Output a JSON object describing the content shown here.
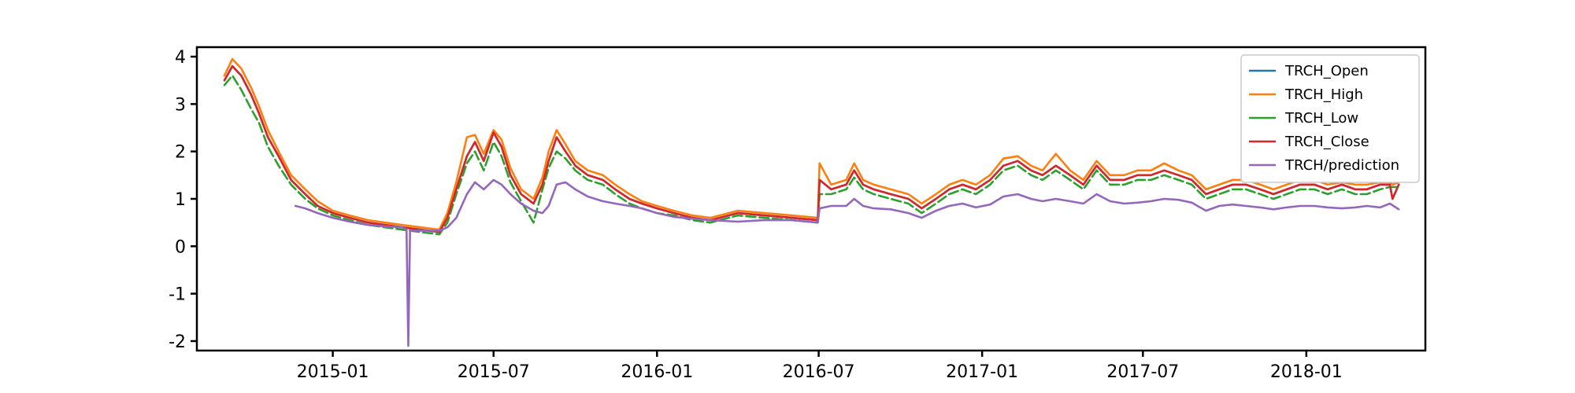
{
  "chart_data": {
    "type": "line",
    "title": "",
    "xlabel": "",
    "ylabel": "",
    "ylim": [
      -2.2,
      4.2
    ],
    "xlim": [
      "2014-08-01",
      "2018-05-15"
    ],
    "grid": false,
    "legend_position": "top-right",
    "y_ticks": [
      {
        "value": 4,
        "label": "4"
      },
      {
        "value": 3,
        "label": "3"
      },
      {
        "value": 2,
        "label": "2"
      },
      {
        "value": 1,
        "label": "1"
      },
      {
        "value": 0,
        "label": "0"
      },
      {
        "value": -1,
        "label": "-1"
      },
      {
        "value": -2,
        "label": "-2"
      }
    ],
    "x_ticks": [
      {
        "date": "2015-01-01",
        "label": "2015-01"
      },
      {
        "date": "2015-07-01",
        "label": "2015-07"
      },
      {
        "date": "2016-01-01",
        "label": "2016-01"
      },
      {
        "date": "2016-07-01",
        "label": "2016-07"
      },
      {
        "date": "2017-01-01",
        "label": "2017-01"
      },
      {
        "date": "2017-07-01",
        "label": "2017-07"
      },
      {
        "date": "2018-01-01",
        "label": "2018-01"
      }
    ],
    "series": [
      {
        "name": "TRCH_Open",
        "color": "#1f77b4",
        "style": "solid",
        "x": [
          "2014-09-01",
          "2014-09-10",
          "2014-09-20",
          "2014-10-01",
          "2014-10-10",
          "2014-10-20",
          "2014-11-01",
          "2014-11-15",
          "2014-12-01",
          "2014-12-15",
          "2015-01-01",
          "2015-01-20",
          "2015-02-10",
          "2015-03-01",
          "2015-03-20",
          "2015-04-10",
          "2015-05-01",
          "2015-05-10",
          "2015-05-20",
          "2015-06-01",
          "2015-06-10",
          "2015-06-20",
          "2015-07-01",
          "2015-07-10",
          "2015-07-20",
          "2015-08-01",
          "2015-08-15",
          "2015-08-25",
          "2015-09-01",
          "2015-09-10",
          "2015-09-20",
          "2015-10-01",
          "2015-10-15",
          "2015-11-01",
          "2015-11-15",
          "2015-12-01",
          "2015-12-15",
          "2016-01-01",
          "2016-01-20",
          "2016-02-10",
          "2016-03-01",
          "2016-04-01",
          "2016-05-01",
          "2016-06-01",
          "2016-06-30",
          "2016-07-02",
          "2016-07-15",
          "2016-08-01",
          "2016-08-10",
          "2016-08-20",
          "2016-09-01",
          "2016-09-20",
          "2016-10-10",
          "2016-10-25",
          "2016-11-10",
          "2016-11-25",
          "2016-12-10",
          "2016-12-25",
          "2017-01-10",
          "2017-01-25",
          "2017-02-10",
          "2017-02-25",
          "2017-03-10",
          "2017-03-25",
          "2017-04-10",
          "2017-04-25",
          "2017-05-10",
          "2017-05-25",
          "2017-06-10",
          "2017-06-25",
          "2017-07-10",
          "2017-07-25",
          "2017-08-10",
          "2017-08-25",
          "2017-09-10",
          "2017-09-25",
          "2017-10-10",
          "2017-10-25",
          "2017-11-10",
          "2017-11-25",
          "2017-12-10",
          "2017-12-25",
          "2018-01-10",
          "2018-01-25",
          "2018-02-10",
          "2018-02-25",
          "2018-03-10",
          "2018-03-25",
          "2018-04-05",
          "2018-04-08",
          "2018-04-15"
        ],
        "y": [
          3.5,
          3.8,
          3.6,
          3.2,
          2.8,
          2.3,
          1.9,
          1.4,
          1.1,
          0.85,
          0.7,
          0.6,
          0.5,
          0.45,
          0.4,
          0.35,
          0.3,
          0.6,
          1.2,
          1.9,
          2.2,
          1.8,
          2.4,
          2.1,
          1.5,
          1.1,
          0.9,
          1.3,
          1.8,
          2.3,
          2.0,
          1.7,
          1.5,
          1.4,
          1.2,
          1.0,
          0.9,
          0.8,
          0.7,
          0.6,
          0.55,
          0.7,
          0.65,
          0.6,
          0.55,
          1.4,
          1.2,
          1.3,
          1.6,
          1.3,
          1.2,
          1.1,
          1.0,
          0.8,
          1.0,
          1.2,
          1.3,
          1.2,
          1.4,
          1.7,
          1.8,
          1.6,
          1.5,
          1.7,
          1.5,
          1.3,
          1.7,
          1.4,
          1.4,
          1.5,
          1.5,
          1.6,
          1.5,
          1.4,
          1.1,
          1.2,
          1.3,
          1.3,
          1.2,
          1.1,
          1.2,
          1.3,
          1.3,
          1.2,
          1.3,
          1.2,
          1.2,
          1.3,
          1.3,
          1.0,
          1.3
        ]
      },
      {
        "name": "TRCH_High",
        "color": "#ff7f0e",
        "style": "solid",
        "x": [
          "2014-09-01",
          "2014-09-10",
          "2014-09-20",
          "2014-10-01",
          "2014-10-10",
          "2014-10-20",
          "2014-11-01",
          "2014-11-15",
          "2014-12-01",
          "2014-12-15",
          "2015-01-01",
          "2015-01-20",
          "2015-02-10",
          "2015-03-01",
          "2015-03-20",
          "2015-04-10",
          "2015-05-01",
          "2015-05-10",
          "2015-05-20",
          "2015-06-01",
          "2015-06-10",
          "2015-06-20",
          "2015-07-01",
          "2015-07-10",
          "2015-07-20",
          "2015-08-01",
          "2015-08-15",
          "2015-08-25",
          "2015-09-01",
          "2015-09-10",
          "2015-09-20",
          "2015-10-01",
          "2015-10-15",
          "2015-11-01",
          "2015-11-15",
          "2015-12-01",
          "2015-12-15",
          "2016-01-01",
          "2016-01-20",
          "2016-02-10",
          "2016-03-01",
          "2016-04-01",
          "2016-05-01",
          "2016-06-01",
          "2016-06-30",
          "2016-07-02",
          "2016-07-15",
          "2016-08-01",
          "2016-08-10",
          "2016-08-20",
          "2016-09-01",
          "2016-09-20",
          "2016-10-10",
          "2016-10-25",
          "2016-11-10",
          "2016-11-25",
          "2016-12-10",
          "2016-12-25",
          "2017-01-10",
          "2017-01-25",
          "2017-02-10",
          "2017-02-25",
          "2017-03-10",
          "2017-03-25",
          "2017-04-10",
          "2017-04-25",
          "2017-05-10",
          "2017-05-25",
          "2017-06-10",
          "2017-06-25",
          "2017-07-10",
          "2017-07-25",
          "2017-08-10",
          "2017-08-25",
          "2017-09-10",
          "2017-09-25",
          "2017-10-10",
          "2017-10-25",
          "2017-11-10",
          "2017-11-25",
          "2017-12-10",
          "2017-12-25",
          "2018-01-10",
          "2018-01-25",
          "2018-02-10",
          "2018-02-25",
          "2018-03-10",
          "2018-03-25",
          "2018-04-05",
          "2018-04-08",
          "2018-04-15"
        ],
        "y": [
          3.6,
          3.95,
          3.75,
          3.35,
          2.95,
          2.45,
          2.0,
          1.5,
          1.2,
          0.95,
          0.75,
          0.65,
          0.55,
          0.5,
          0.45,
          0.4,
          0.35,
          0.7,
          1.35,
          2.3,
          2.35,
          1.95,
          2.45,
          2.25,
          1.65,
          1.2,
          1.0,
          1.45,
          2.0,
          2.45,
          2.15,
          1.8,
          1.6,
          1.5,
          1.3,
          1.1,
          0.95,
          0.85,
          0.75,
          0.65,
          0.6,
          0.75,
          0.7,
          0.65,
          0.6,
          1.75,
          1.3,
          1.4,
          1.75,
          1.4,
          1.3,
          1.2,
          1.1,
          0.9,
          1.1,
          1.3,
          1.4,
          1.3,
          1.5,
          1.85,
          1.9,
          1.7,
          1.6,
          1.95,
          1.6,
          1.4,
          1.8,
          1.5,
          1.5,
          1.6,
          1.6,
          1.75,
          1.6,
          1.5,
          1.2,
          1.3,
          1.4,
          1.4,
          1.3,
          1.2,
          1.3,
          1.4,
          1.4,
          1.3,
          1.35,
          1.3,
          1.3,
          1.35,
          1.35,
          1.3,
          1.35
        ]
      },
      {
        "name": "TRCH_Low",
        "color": "#2ca02c",
        "style": "dashed",
        "x": [
          "2014-09-01",
          "2014-09-10",
          "2014-09-20",
          "2014-10-01",
          "2014-10-10",
          "2014-10-20",
          "2014-11-01",
          "2014-11-15",
          "2014-12-01",
          "2014-12-15",
          "2015-01-01",
          "2015-01-20",
          "2015-02-10",
          "2015-03-01",
          "2015-03-20",
          "2015-04-10",
          "2015-05-01",
          "2015-05-10",
          "2015-05-20",
          "2015-06-01",
          "2015-06-10",
          "2015-06-20",
          "2015-07-01",
          "2015-07-10",
          "2015-07-20",
          "2015-08-01",
          "2015-08-15",
          "2015-08-25",
          "2015-09-01",
          "2015-09-10",
          "2015-09-20",
          "2015-10-01",
          "2015-10-15",
          "2015-11-01",
          "2015-11-15",
          "2015-12-01",
          "2015-12-15",
          "2016-01-01",
          "2016-01-20",
          "2016-02-10",
          "2016-03-01",
          "2016-04-01",
          "2016-05-01",
          "2016-06-01",
          "2016-06-30",
          "2016-07-02",
          "2016-07-15",
          "2016-08-01",
          "2016-08-10",
          "2016-08-20",
          "2016-09-01",
          "2016-09-20",
          "2016-10-10",
          "2016-10-25",
          "2016-11-10",
          "2016-11-25",
          "2016-12-10",
          "2016-12-25",
          "2017-01-10",
          "2017-01-25",
          "2017-02-10",
          "2017-02-25",
          "2017-03-10",
          "2017-03-25",
          "2017-04-10",
          "2017-04-25",
          "2017-05-10",
          "2017-05-25",
          "2017-06-10",
          "2017-06-25",
          "2017-07-10",
          "2017-07-25",
          "2017-08-10",
          "2017-08-25",
          "2017-09-10",
          "2017-09-25",
          "2017-10-10",
          "2017-10-25",
          "2017-11-10",
          "2017-11-25",
          "2017-12-10",
          "2017-12-25",
          "2018-01-10",
          "2018-01-25",
          "2018-02-10",
          "2018-02-25",
          "2018-03-10",
          "2018-03-25",
          "2018-04-05",
          "2018-04-08",
          "2018-04-15"
        ],
        "y": [
          3.4,
          3.6,
          3.3,
          2.9,
          2.6,
          2.1,
          1.7,
          1.3,
          1.0,
          0.8,
          0.65,
          0.55,
          0.45,
          0.4,
          0.35,
          0.3,
          0.25,
          0.5,
          1.1,
          1.75,
          2.0,
          1.6,
          2.2,
          1.9,
          1.35,
          0.95,
          0.5,
          1.2,
          1.65,
          2.0,
          1.85,
          1.6,
          1.4,
          1.3,
          1.1,
          0.9,
          0.8,
          0.7,
          0.65,
          0.55,
          0.5,
          0.65,
          0.6,
          0.55,
          0.5,
          1.1,
          1.1,
          1.2,
          1.45,
          1.2,
          1.1,
          1.0,
          0.9,
          0.7,
          0.9,
          1.1,
          1.2,
          1.1,
          1.3,
          1.6,
          1.7,
          1.5,
          1.4,
          1.6,
          1.4,
          1.2,
          1.6,
          1.3,
          1.3,
          1.4,
          1.4,
          1.5,
          1.4,
          1.3,
          1.0,
          1.1,
          1.2,
          1.2,
          1.1,
          1.0,
          1.1,
          1.2,
          1.2,
          1.1,
          1.2,
          1.1,
          1.1,
          1.2,
          1.25,
          1.25,
          1.25
        ]
      },
      {
        "name": "TRCH_Close",
        "color": "#d62728",
        "style": "solid",
        "x": [
          "2014-09-01",
          "2014-09-10",
          "2014-09-20",
          "2014-10-01",
          "2014-10-10",
          "2014-10-20",
          "2014-11-01",
          "2014-11-15",
          "2014-12-01",
          "2014-12-15",
          "2015-01-01",
          "2015-01-20",
          "2015-02-10",
          "2015-03-01",
          "2015-03-20",
          "2015-04-10",
          "2015-05-01",
          "2015-05-10",
          "2015-05-20",
          "2015-06-01",
          "2015-06-10",
          "2015-06-20",
          "2015-07-01",
          "2015-07-10",
          "2015-07-20",
          "2015-08-01",
          "2015-08-15",
          "2015-08-25",
          "2015-09-01",
          "2015-09-10",
          "2015-09-20",
          "2015-10-01",
          "2015-10-15",
          "2015-11-01",
          "2015-11-15",
          "2015-12-01",
          "2015-12-15",
          "2016-01-01",
          "2016-01-20",
          "2016-02-10",
          "2016-03-01",
          "2016-04-01",
          "2016-05-01",
          "2016-06-01",
          "2016-06-30",
          "2016-07-02",
          "2016-07-15",
          "2016-08-01",
          "2016-08-10",
          "2016-08-20",
          "2016-09-01",
          "2016-09-20",
          "2016-10-10",
          "2016-10-25",
          "2016-11-10",
          "2016-11-25",
          "2016-12-10",
          "2016-12-25",
          "2017-01-10",
          "2017-01-25",
          "2017-02-10",
          "2017-02-25",
          "2017-03-10",
          "2017-03-25",
          "2017-04-10",
          "2017-04-25",
          "2017-05-10",
          "2017-05-25",
          "2017-06-10",
          "2017-06-25",
          "2017-07-10",
          "2017-07-25",
          "2017-08-10",
          "2017-08-25",
          "2017-09-10",
          "2017-09-25",
          "2017-10-10",
          "2017-10-25",
          "2017-11-10",
          "2017-11-25",
          "2017-12-10",
          "2017-12-25",
          "2018-01-10",
          "2018-01-25",
          "2018-02-10",
          "2018-02-25",
          "2018-03-10",
          "2018-03-25",
          "2018-04-05",
          "2018-04-08",
          "2018-04-15"
        ],
        "y": [
          3.5,
          3.8,
          3.6,
          3.2,
          2.8,
          2.3,
          1.9,
          1.4,
          1.1,
          0.85,
          0.7,
          0.6,
          0.5,
          0.45,
          0.4,
          0.35,
          0.3,
          0.6,
          1.2,
          1.9,
          2.2,
          1.8,
          2.4,
          2.1,
          1.5,
          1.1,
          0.9,
          1.3,
          1.8,
          2.3,
          2.0,
          1.7,
          1.5,
          1.4,
          1.2,
          1.0,
          0.9,
          0.8,
          0.7,
          0.6,
          0.55,
          0.7,
          0.65,
          0.6,
          0.55,
          1.4,
          1.2,
          1.3,
          1.6,
          1.3,
          1.2,
          1.1,
          1.0,
          0.8,
          1.0,
          1.2,
          1.3,
          1.2,
          1.4,
          1.7,
          1.8,
          1.6,
          1.5,
          1.7,
          1.5,
          1.3,
          1.7,
          1.4,
          1.4,
          1.5,
          1.5,
          1.6,
          1.5,
          1.4,
          1.1,
          1.2,
          1.3,
          1.3,
          1.2,
          1.1,
          1.2,
          1.3,
          1.3,
          1.2,
          1.3,
          1.2,
          1.2,
          1.3,
          1.3,
          1.0,
          1.3
        ]
      },
      {
        "name": "TRCH/prediction",
        "color": "#9467bd",
        "style": "solid",
        "x": [
          "2014-11-20",
          "2014-12-01",
          "2014-12-15",
          "2015-01-01",
          "2015-01-20",
          "2015-02-10",
          "2015-03-01",
          "2015-03-20",
          "2015-03-25",
          "2015-03-27",
          "2015-03-29",
          "2015-04-10",
          "2015-05-01",
          "2015-05-10",
          "2015-05-20",
          "2015-06-01",
          "2015-06-10",
          "2015-06-20",
          "2015-07-01",
          "2015-07-10",
          "2015-07-20",
          "2015-08-01",
          "2015-08-15",
          "2015-08-25",
          "2015-09-01",
          "2015-09-10",
          "2015-09-20",
          "2015-10-01",
          "2015-10-15",
          "2015-11-01",
          "2015-11-15",
          "2015-12-01",
          "2015-12-15",
          "2016-01-01",
          "2016-01-20",
          "2016-02-10",
          "2016-03-01",
          "2016-04-01",
          "2016-05-01",
          "2016-06-01",
          "2016-06-30",
          "2016-07-02",
          "2016-07-15",
          "2016-08-01",
          "2016-08-10",
          "2016-08-20",
          "2016-09-01",
          "2016-09-20",
          "2016-10-10",
          "2016-10-25",
          "2016-11-10",
          "2016-11-25",
          "2016-12-10",
          "2016-12-25",
          "2017-01-10",
          "2017-01-25",
          "2017-02-10",
          "2017-02-25",
          "2017-03-10",
          "2017-03-25",
          "2017-04-10",
          "2017-04-25",
          "2017-05-10",
          "2017-05-25",
          "2017-06-10",
          "2017-06-25",
          "2017-07-10",
          "2017-07-25",
          "2017-08-10",
          "2017-08-25",
          "2017-09-10",
          "2017-09-25",
          "2017-10-10",
          "2017-10-25",
          "2017-11-10",
          "2017-11-25",
          "2017-12-10",
          "2017-12-25",
          "2018-01-10",
          "2018-01-25",
          "2018-02-10",
          "2018-02-25",
          "2018-03-10",
          "2018-03-25",
          "2018-04-05",
          "2018-04-15"
        ],
        "y": [
          0.85,
          0.8,
          0.7,
          0.6,
          0.52,
          0.45,
          0.42,
          0.4,
          0.35,
          -2.1,
          0.33,
          0.33,
          0.33,
          0.4,
          0.6,
          1.1,
          1.35,
          1.2,
          1.4,
          1.3,
          1.1,
          0.9,
          0.75,
          0.7,
          0.85,
          1.3,
          1.35,
          1.2,
          1.05,
          0.95,
          0.9,
          0.85,
          0.8,
          0.7,
          0.62,
          0.58,
          0.55,
          0.52,
          0.55,
          0.55,
          0.5,
          0.8,
          0.85,
          0.85,
          1.0,
          0.85,
          0.8,
          0.78,
          0.7,
          0.6,
          0.75,
          0.85,
          0.9,
          0.82,
          0.88,
          1.05,
          1.1,
          1.0,
          0.95,
          1.0,
          0.95,
          0.9,
          1.1,
          0.95,
          0.9,
          0.92,
          0.95,
          1.0,
          0.98,
          0.92,
          0.75,
          0.85,
          0.88,
          0.85,
          0.82,
          0.78,
          0.82,
          0.85,
          0.85,
          0.82,
          0.8,
          0.82,
          0.85,
          0.82,
          0.9,
          0.78
        ]
      }
    ]
  }
}
